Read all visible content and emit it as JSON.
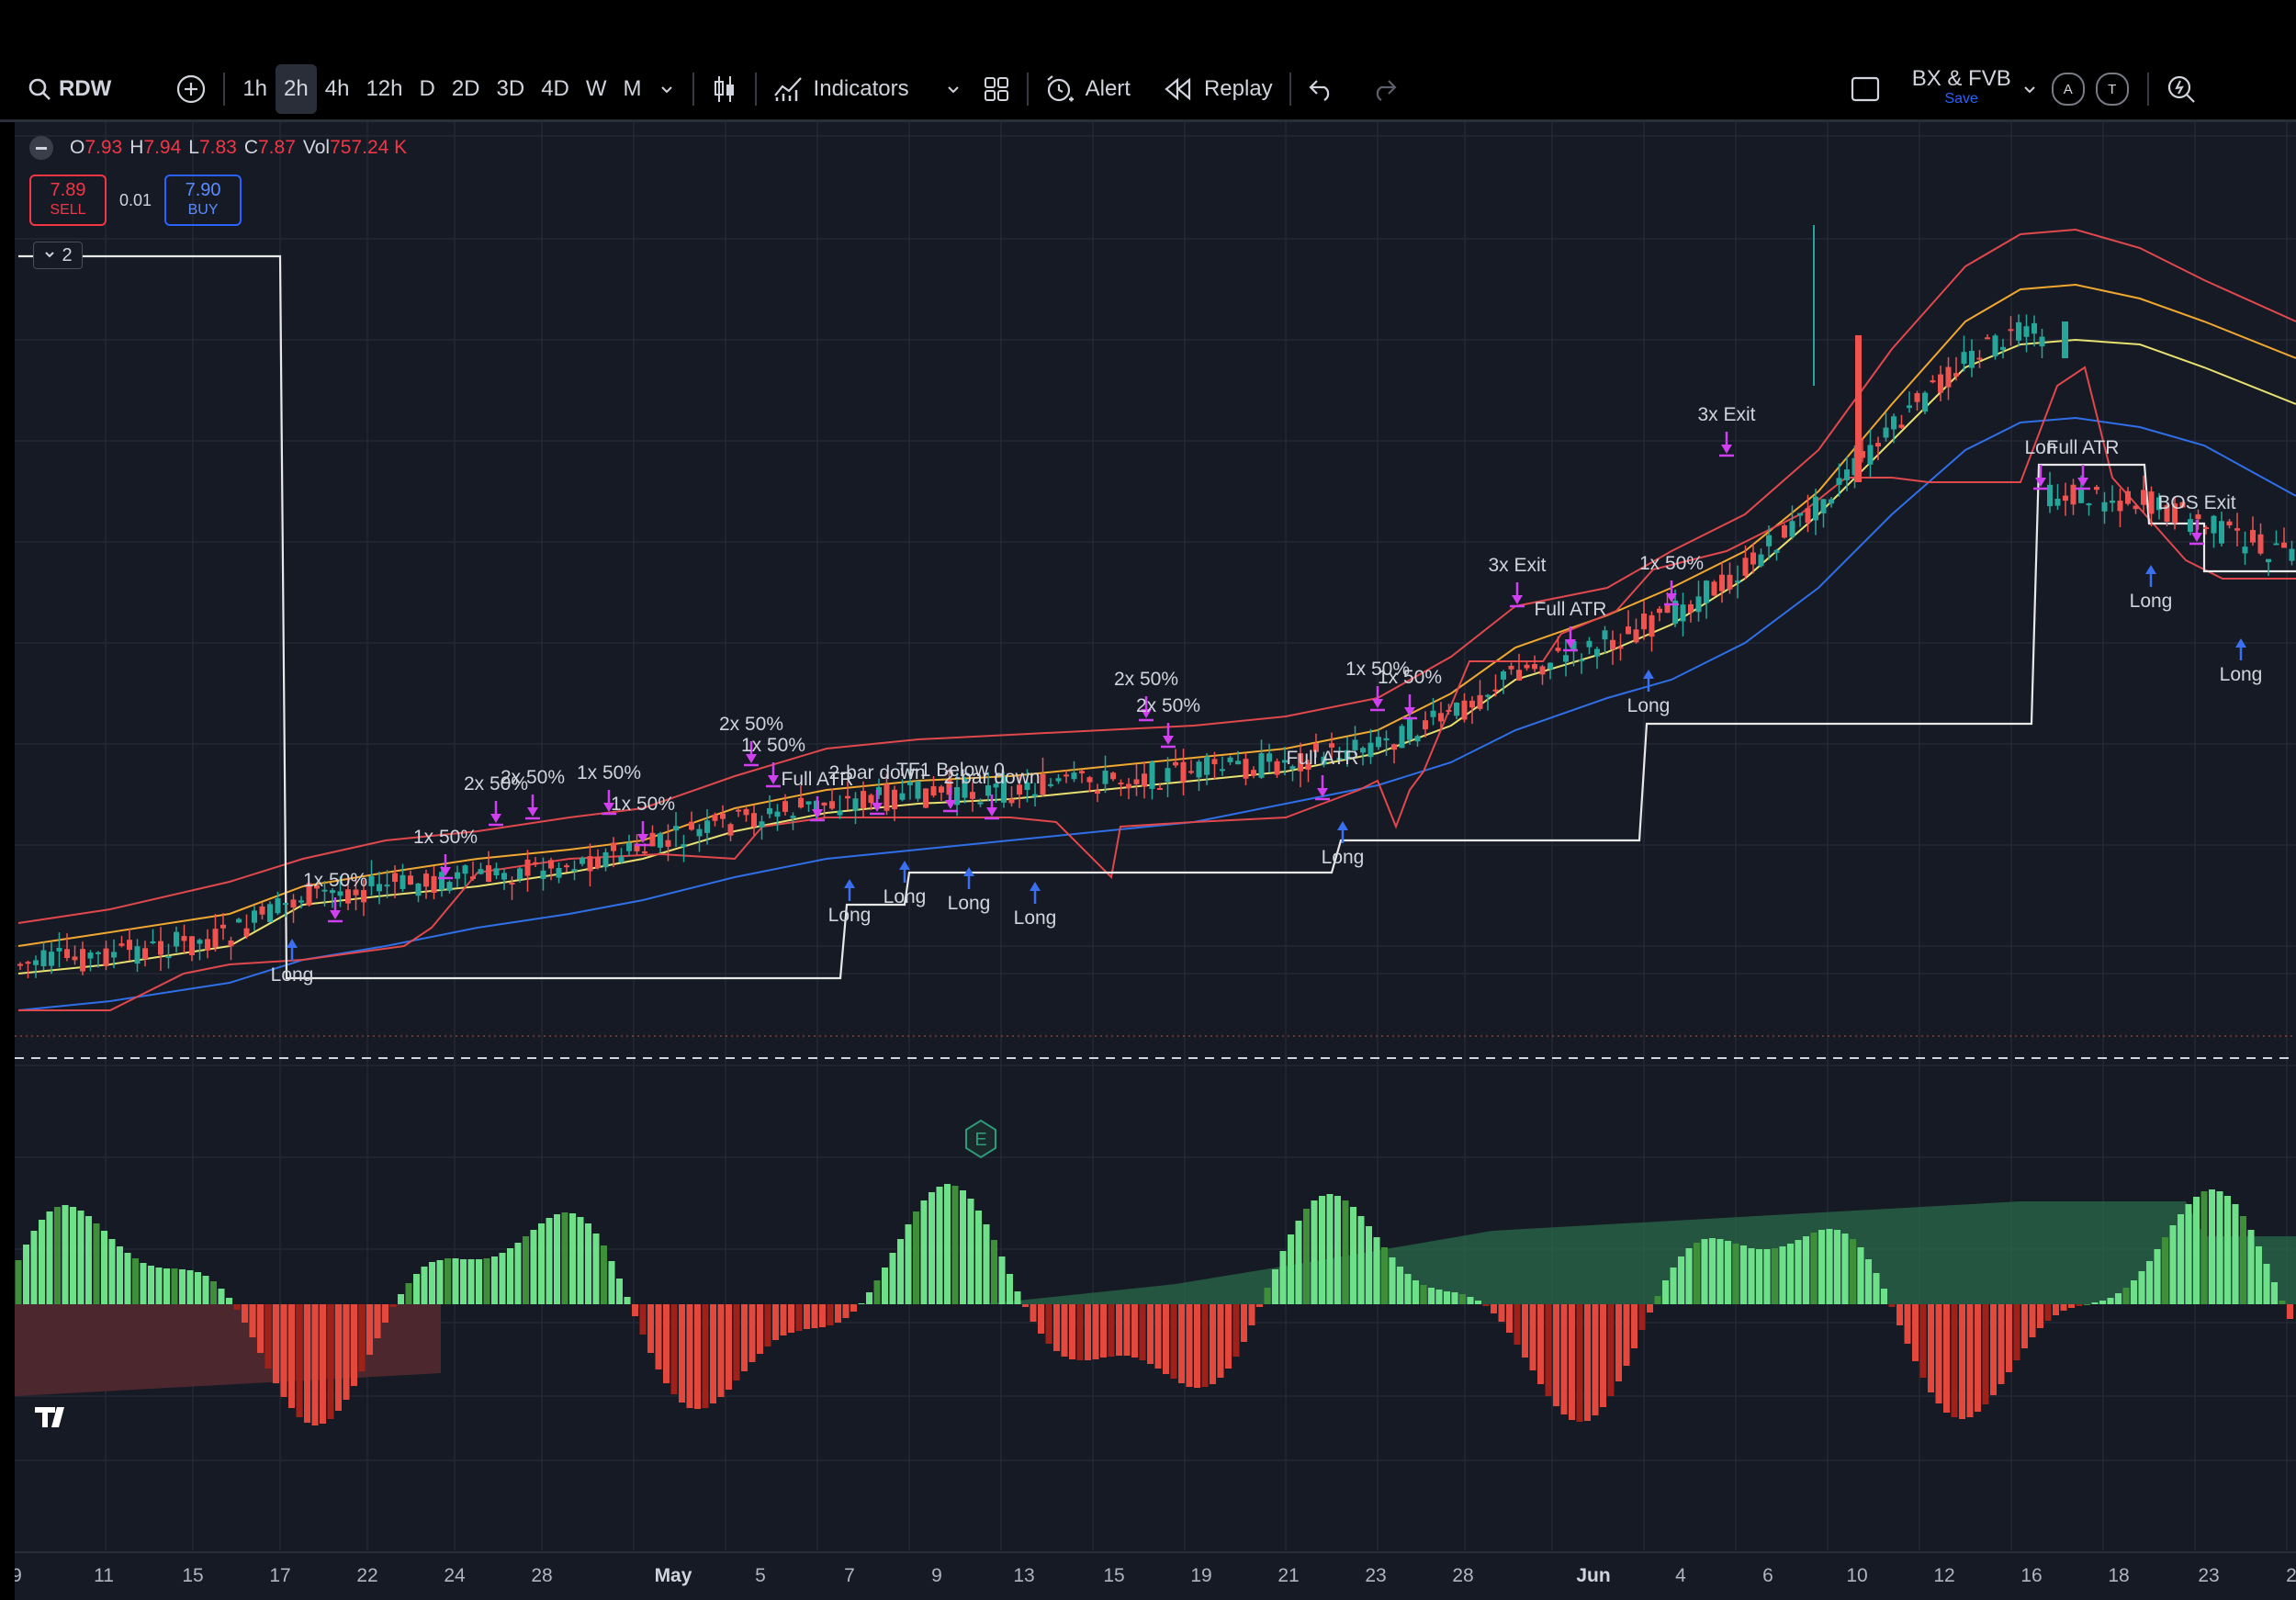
{
  "toolbar": {
    "symbol": "RDW",
    "timeframes": [
      "1h",
      "2h",
      "4h",
      "12h",
      "D",
      "2D",
      "3D",
      "4D",
      "W",
      "M"
    ],
    "active_timeframe": "2h",
    "indicators_label": "Indicators",
    "alert_label": "Alert",
    "replay_label": "Replay",
    "layout_name": "BX & FVB",
    "layout_save": "Save",
    "circle_a": "A",
    "circle_t": "T"
  },
  "legend": {
    "o_label": "O",
    "o_value": "7.93",
    "h_label": "H",
    "h_value": "7.94",
    "l_label": "L",
    "l_value": "7.83",
    "c_label": "C",
    "c_value": "7.87",
    "vol_label": "Vol",
    "vol_value": "757.24 K"
  },
  "trade": {
    "sell_price": "7.89",
    "sell_label": "SELL",
    "spread": "0.01",
    "buy_price": "7.90",
    "buy_label": "BUY"
  },
  "pane_count": "2",
  "earnings_marker": "E",
  "x_axis": [
    {
      "label": "9",
      "bold": false
    },
    {
      "label": "11",
      "bold": false
    },
    {
      "label": "15",
      "bold": false
    },
    {
      "label": "17",
      "bold": false
    },
    {
      "label": "22",
      "bold": false
    },
    {
      "label": "24",
      "bold": false
    },
    {
      "label": "28",
      "bold": false
    },
    {
      "label": "May",
      "bold": true
    },
    {
      "label": "5",
      "bold": false
    },
    {
      "label": "7",
      "bold": false
    },
    {
      "label": "9",
      "bold": false
    },
    {
      "label": "13",
      "bold": false
    },
    {
      "label": "15",
      "bold": false
    },
    {
      "label": "19",
      "bold": false
    },
    {
      "label": "21",
      "bold": false
    },
    {
      "label": "23",
      "bold": false
    },
    {
      "label": "28",
      "bold": false
    },
    {
      "label": "Jun",
      "bold": true
    },
    {
      "label": "4",
      "bold": false
    },
    {
      "label": "6",
      "bold": false
    },
    {
      "label": "10",
      "bold": false
    },
    {
      "label": "12",
      "bold": false
    },
    {
      "label": "16",
      "bold": false
    },
    {
      "label": "18",
      "bold": false
    },
    {
      "label": "23",
      "bold": false
    },
    {
      "label": "2",
      "bold": false
    }
  ],
  "signal_labels": [
    {
      "text": "Long",
      "pos": "below"
    },
    {
      "text": "1x 50%",
      "pos": "above"
    },
    {
      "text": "1x 50%",
      "pos": "above"
    },
    {
      "text": "2x 50%",
      "pos": "above"
    },
    {
      "text": "2x 50%",
      "pos": "above"
    },
    {
      "text": "1x 50%",
      "pos": "above"
    },
    {
      "text": "1x 50%",
      "pos": "above"
    },
    {
      "text": "2x 50%",
      "pos": "above"
    },
    {
      "text": "1x 50%",
      "pos": "above"
    },
    {
      "text": "Full ATR",
      "pos": "above"
    },
    {
      "text": "2-bar down",
      "pos": "above"
    },
    {
      "text": "TF1 Below 0",
      "pos": "above"
    },
    {
      "text": "2-bar down",
      "pos": "above"
    },
    {
      "text": "Long",
      "pos": "below"
    },
    {
      "text": "Long",
      "pos": "below"
    },
    {
      "text": "Long",
      "pos": "below"
    },
    {
      "text": "Long",
      "pos": "below"
    },
    {
      "text": "2x 50%",
      "pos": "above"
    },
    {
      "text": "2x 50%",
      "pos": "above"
    },
    {
      "text": "Full ATR",
      "pos": "above"
    },
    {
      "text": "1x 50%",
      "pos": "above"
    },
    {
      "text": "1x 50%",
      "pos": "above"
    },
    {
      "text": "Long",
      "pos": "below"
    },
    {
      "text": "3x Exit",
      "pos": "above"
    },
    {
      "text": "Full ATR",
      "pos": "above"
    },
    {
      "text": "1x 50%",
      "pos": "above"
    },
    {
      "text": "Long",
      "pos": "below"
    },
    {
      "text": "3x Exit",
      "pos": "above"
    },
    {
      "text": "Lon",
      "pos": "above"
    },
    {
      "text": "Full ATR",
      "pos": "above"
    },
    {
      "text": "BOS Exit",
      "pos": "above"
    },
    {
      "text": "Long",
      "pos": "below"
    },
    {
      "text": "Long",
      "pos": "below"
    },
    {
      "text": "E",
      "pos": "above"
    }
  ],
  "colors": {
    "up": "#26a69a",
    "down": "#ef5350",
    "bg": "#161a25",
    "hist_up": "#6fe08a",
    "hist_up_dark": "#3f8f3a",
    "hist_down": "#e2483c",
    "hist_down_dark": "#a0201a",
    "ema_red": "#e0484c",
    "ema_orange": "#f0a830",
    "ema_yellow": "#e8e070",
    "ema_blue": "#2f6fe8",
    "stop_white": "#e8e8e8",
    "signal_magenta": "#d040f0",
    "signal_blue": "#3a6ff0"
  }
}
